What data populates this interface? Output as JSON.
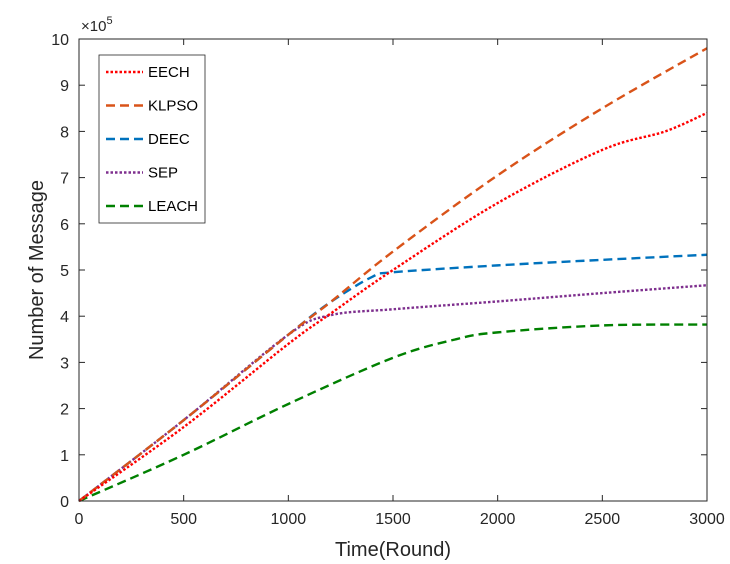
{
  "chart_data": {
    "type": "line",
    "title": "",
    "xlabel": "Time(Round)",
    "ylabel": "Number of Message",
    "xlim": [
      0,
      3000
    ],
    "ylim": [
      0,
      10
    ],
    "y_exponent_label": "×10",
    "y_exponent_power": "5",
    "xticks": [
      "0",
      "500",
      "1000",
      "1500",
      "2000",
      "2500",
      "3000"
    ],
    "yticks": [
      "0",
      "1",
      "2",
      "3",
      "4",
      "5",
      "6",
      "7",
      "8",
      "9",
      "10"
    ],
    "grid": false,
    "legend_position": "top-left",
    "series": [
      {
        "name": "EECH",
        "color": "#ff0000",
        "style": "dotted",
        "x": [
          0,
          500,
          1000,
          1200,
          1500,
          2000,
          2500,
          2800,
          3000
        ],
        "y": [
          0,
          1.6,
          3.4,
          4.05,
          5.0,
          6.45,
          7.6,
          8.0,
          8.4
        ]
      },
      {
        "name": "KLPSO",
        "color": "#d95319",
        "style": "dashed",
        "x": [
          0,
          500,
          1000,
          1200,
          1500,
          2000,
          2500,
          3000
        ],
        "y": [
          0,
          1.75,
          3.6,
          4.3,
          5.4,
          7.05,
          8.5,
          9.8
        ]
      },
      {
        "name": "DEEC",
        "color": "#0072bd",
        "style": "dashed",
        "x": [
          0,
          500,
          1000,
          1200,
          1400,
          1500,
          2000,
          2500,
          3000
        ],
        "y": [
          0,
          1.75,
          3.6,
          4.3,
          4.85,
          4.95,
          5.1,
          5.22,
          5.33
        ]
      },
      {
        "name": "SEP",
        "color": "#7e2f8e",
        "style": "dotted",
        "x": [
          0,
          500,
          1000,
          1200,
          1500,
          2000,
          2500,
          3000
        ],
        "y": [
          0,
          1.75,
          3.6,
          4.02,
          4.15,
          4.32,
          4.5,
          4.67
        ]
      },
      {
        "name": "LEACH",
        "color": "#008000",
        "style": "dashed",
        "x": [
          0,
          500,
          1000,
          1500,
          1800,
          2000,
          2500,
          3000
        ],
        "y": [
          0,
          1.0,
          2.1,
          3.1,
          3.5,
          3.65,
          3.8,
          3.82
        ]
      }
    ]
  }
}
